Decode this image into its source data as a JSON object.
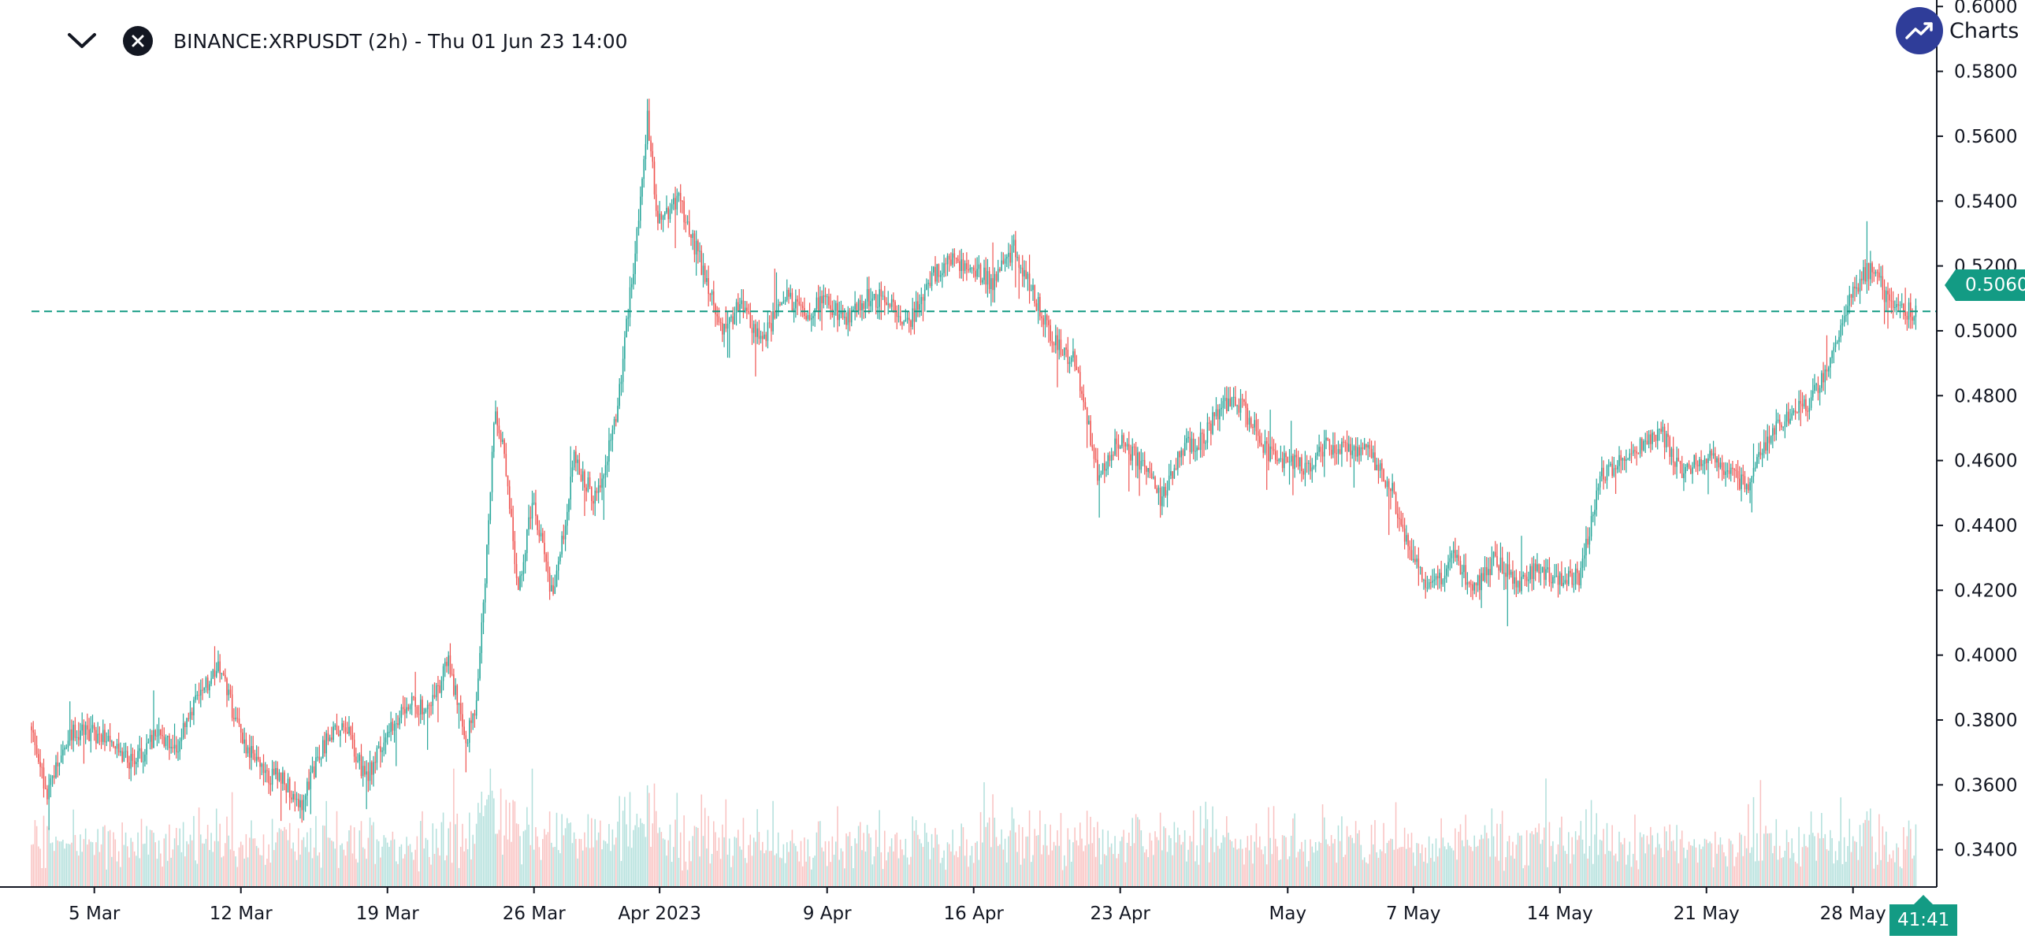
{
  "header": {
    "symbol_title": "BINANCE:XRPUSDT (2h) - Thu 01 Jun 23 14:00",
    "collapse_icon": "chevron-down-icon",
    "close_icon": "close-icon"
  },
  "brand": {
    "text": "Charts p",
    "logo_icon": "trend-up-icon"
  },
  "last_price_label": "0.5060",
  "countdown_label": "41:41",
  "colors": {
    "up": "#26a69a",
    "down": "#ef5350",
    "last_price": "#139b84",
    "axis": "#131722"
  },
  "chart_data": {
    "type": "candlestick",
    "interval": "2h",
    "y_axis": {
      "position": "right",
      "range": [
        0.3285,
        0.602
      ],
      "ticks": [
        "0.6000",
        "0.5800",
        "0.5600",
        "0.5400",
        "0.5200",
        "0.5000",
        "0.4800",
        "0.4600",
        "0.4400",
        "0.4200",
        "0.4000",
        "0.3800",
        "0.3600",
        "0.3400"
      ]
    },
    "x_axis": {
      "range": [
        0,
        91
      ],
      "unit": "days since 2023-03-02 00:00",
      "ticks": [
        {
          "label": "5 Mar",
          "day": 3
        },
        {
          "label": "12 Mar",
          "day": 10
        },
        {
          "label": "19 Mar",
          "day": 17
        },
        {
          "label": "26 Mar",
          "day": 24
        },
        {
          "label": "Apr 2023",
          "day": 30
        },
        {
          "label": "9 Apr",
          "day": 38
        },
        {
          "label": "16 Apr",
          "day": 45
        },
        {
          "label": "23 Apr",
          "day": 52
        },
        {
          "label": "May",
          "day": 60
        },
        {
          "label": "7 May",
          "day": 66
        },
        {
          "label": "14 May",
          "day": 73
        },
        {
          "label": "21 May",
          "day": 80
        },
        {
          "label": "28 May",
          "day": 87
        }
      ]
    },
    "last_price": 0.506,
    "price_path": [
      [
        0,
        0.378
      ],
      [
        0.8,
        0.358
      ],
      [
        2,
        0.376
      ],
      [
        3,
        0.376
      ],
      [
        4,
        0.372
      ],
      [
        5,
        0.366
      ],
      [
        6,
        0.376
      ],
      [
        7,
        0.372
      ],
      [
        8,
        0.386
      ],
      [
        9,
        0.398
      ],
      [
        10,
        0.376
      ],
      [
        11,
        0.364
      ],
      [
        12,
        0.362
      ],
      [
        13,
        0.354
      ],
      [
        14,
        0.372
      ],
      [
        15,
        0.38
      ],
      [
        16,
        0.362
      ],
      [
        17,
        0.374
      ],
      [
        18,
        0.386
      ],
      [
        19,
        0.382
      ],
      [
        20,
        0.398
      ],
      [
        20.8,
        0.374
      ],
      [
        21.3,
        0.382
      ],
      [
        21.8,
        0.428
      ],
      [
        22.2,
        0.478
      ],
      [
        22.8,
        0.456
      ],
      [
        23.3,
        0.418
      ],
      [
        24,
        0.448
      ],
      [
        25,
        0.416
      ],
      [
        26,
        0.46
      ],
      [
        27,
        0.448
      ],
      [
        28,
        0.472
      ],
      [
        29,
        0.53
      ],
      [
        29.5,
        0.566
      ],
      [
        30,
        0.534
      ],
      [
        31,
        0.54
      ],
      [
        32,
        0.522
      ],
      [
        33,
        0.5
      ],
      [
        34,
        0.508
      ],
      [
        35,
        0.496
      ],
      [
        36,
        0.512
      ],
      [
        37,
        0.504
      ],
      [
        38,
        0.51
      ],
      [
        39,
        0.503
      ],
      [
        40,
        0.51
      ],
      [
        41,
        0.51
      ],
      [
        42,
        0.502
      ],
      [
        43,
        0.516
      ],
      [
        44,
        0.522
      ],
      [
        45,
        0.52
      ],
      [
        46,
        0.514
      ],
      [
        47,
        0.526
      ],
      [
        48,
        0.51
      ],
      [
        49,
        0.496
      ],
      [
        50,
        0.49
      ],
      [
        51,
        0.456
      ],
      [
        52,
        0.466
      ],
      [
        53,
        0.46
      ],
      [
        54,
        0.448
      ],
      [
        55,
        0.464
      ],
      [
        56,
        0.466
      ],
      [
        57,
        0.478
      ],
      [
        58,
        0.476
      ],
      [
        59,
        0.463
      ],
      [
        60,
        0.46
      ],
      [
        61,
        0.458
      ],
      [
        62,
        0.465
      ],
      [
        63,
        0.463
      ],
      [
        64,
        0.462
      ],
      [
        65,
        0.452
      ],
      [
        66,
        0.43
      ],
      [
        67,
        0.42
      ],
      [
        68,
        0.43
      ],
      [
        69,
        0.42
      ],
      [
        70,
        0.43
      ],
      [
        71,
        0.422
      ],
      [
        72,
        0.426
      ],
      [
        73,
        0.424
      ],
      [
        74,
        0.424
      ],
      [
        75,
        0.455
      ],
      [
        76,
        0.46
      ],
      [
        77,
        0.466
      ],
      [
        78,
        0.468
      ],
      [
        79,
        0.456
      ],
      [
        80,
        0.462
      ],
      [
        81,
        0.458
      ],
      [
        82,
        0.452
      ],
      [
        83,
        0.466
      ],
      [
        84,
        0.474
      ],
      [
        85,
        0.478
      ],
      [
        86,
        0.49
      ],
      [
        87,
        0.512
      ],
      [
        88,
        0.52
      ],
      [
        89,
        0.506
      ],
      [
        90,
        0.506
      ]
    ],
    "volume": {
      "baseline_price": 0.3285,
      "band_top_price": 0.365,
      "note": "volume histogram overlaid at bottom of price pane"
    }
  }
}
